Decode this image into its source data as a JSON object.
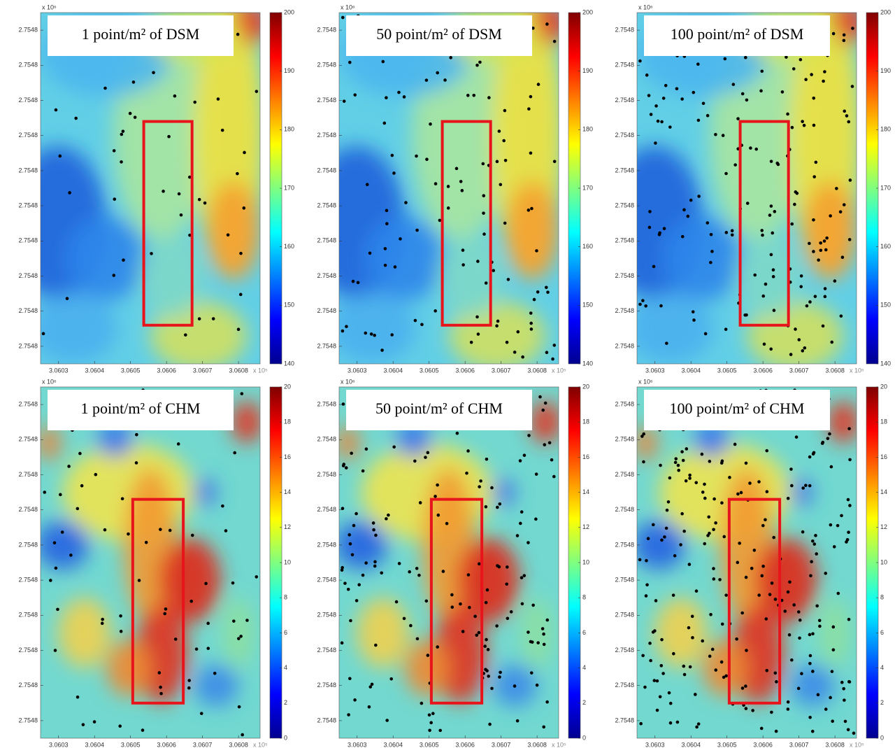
{
  "chart_data": [
    {
      "type": "heatmap",
      "kind": "dsm",
      "title": "1 point/m² of DSM",
      "y_exponent": "x 10⁶",
      "x_exponent": "x 10⁵",
      "xlim": [
        3.06025,
        3.06086
      ],
      "xticks": [
        3.0603,
        3.0604,
        3.0605,
        3.0606,
        3.0607,
        3.0608
      ],
      "ylim": [
        2.75475,
        2.75485
      ],
      "yticks": [
        {
          "value": 2.754755,
          "label": "2.7548"
        },
        {
          "value": 2.754765,
          "label": "2.7548"
        },
        {
          "value": 2.754775,
          "label": "2.7548"
        },
        {
          "value": 2.754785,
          "label": "2.7548"
        },
        {
          "value": 2.754795,
          "label": "2.7548"
        },
        {
          "value": 2.754805,
          "label": "2.7548"
        },
        {
          "value": 2.754815,
          "label": "2.7548"
        },
        {
          "value": 2.754825,
          "label": "2.7548"
        },
        {
          "value": 2.754835,
          "label": "2.7548"
        },
        {
          "value": 2.754845,
          "label": "2.7548"
        }
      ],
      "zlim": [
        140,
        200
      ],
      "zticks": [
        140,
        150,
        160,
        170,
        180,
        190,
        200
      ],
      "dot_density": 45
    },
    {
      "type": "heatmap",
      "kind": "dsm",
      "title": "50 point/m² of DSM",
      "y_exponent": "x 10⁶",
      "x_exponent": "x 10⁵",
      "xlim": [
        3.06025,
        3.06086
      ],
      "xticks": [
        3.0603,
        3.0604,
        3.0605,
        3.0606,
        3.0607,
        3.0608
      ],
      "ylim": [
        2.75475,
        2.75485
      ],
      "yticks": [
        {
          "value": 2.754755,
          "label": "2.7548"
        },
        {
          "value": 2.754765,
          "label": "2.7548"
        },
        {
          "value": 2.754775,
          "label": "2.7548"
        },
        {
          "value": 2.754785,
          "label": "2.7548"
        },
        {
          "value": 2.754795,
          "label": "2.7548"
        },
        {
          "value": 2.754805,
          "label": "2.7548"
        },
        {
          "value": 2.754815,
          "label": "2.7548"
        },
        {
          "value": 2.754825,
          "label": "2.7548"
        },
        {
          "value": 2.754835,
          "label": "2.7548"
        },
        {
          "value": 2.754845,
          "label": "2.7548"
        }
      ],
      "zlim": [
        140,
        200
      ],
      "zticks": [
        140,
        150,
        160,
        170,
        180,
        190,
        200
      ],
      "dot_density": 110
    },
    {
      "type": "heatmap",
      "kind": "dsm",
      "title": "100 point/m² of DSM",
      "y_exponent": "x 10⁶",
      "x_exponent": "x 10⁵",
      "xlim": [
        3.06025,
        3.06086
      ],
      "xticks": [
        3.0603,
        3.0604,
        3.0605,
        3.0606,
        3.0607,
        3.0608
      ],
      "ylim": [
        2.75475,
        2.75485
      ],
      "yticks": [
        {
          "value": 2.754755,
          "label": "2.7548"
        },
        {
          "value": 2.754765,
          "label": "2.7548"
        },
        {
          "value": 2.754775,
          "label": "2.7548"
        },
        {
          "value": 2.754785,
          "label": "2.7548"
        },
        {
          "value": 2.754795,
          "label": "2.7548"
        },
        {
          "value": 2.754805,
          "label": "2.7548"
        },
        {
          "value": 2.754815,
          "label": "2.7548"
        },
        {
          "value": 2.754825,
          "label": "2.7548"
        },
        {
          "value": 2.754835,
          "label": "2.7548"
        },
        {
          "value": 2.754845,
          "label": "2.7548"
        }
      ],
      "zlim": [
        140,
        200
      ],
      "zticks": [
        140,
        150,
        160,
        170,
        180,
        190,
        200
      ],
      "dot_density": 170
    },
    {
      "type": "heatmap",
      "kind": "chm",
      "title": "1 point/m² of CHM",
      "y_exponent": "x 10⁶",
      "x_exponent": "x 10⁵",
      "xlim": [
        3.06025,
        3.06086
      ],
      "xticks": [
        3.0603,
        3.0604,
        3.0605,
        3.0606,
        3.0607,
        3.0608
      ],
      "ylim": [
        2.75475,
        2.75485
      ],
      "yticks": [
        {
          "value": 2.754755,
          "label": "2.7548"
        },
        {
          "value": 2.754765,
          "label": "2.7548"
        },
        {
          "value": 2.754775,
          "label": "2.7548"
        },
        {
          "value": 2.754785,
          "label": "2.7548"
        },
        {
          "value": 2.754795,
          "label": "2.7548"
        },
        {
          "value": 2.754805,
          "label": "2.7548"
        },
        {
          "value": 2.754815,
          "label": "2.7548"
        },
        {
          "value": 2.754825,
          "label": "2.7548"
        },
        {
          "value": 2.754835,
          "label": "2.7548"
        },
        {
          "value": 2.754845,
          "label": "2.7548"
        }
      ],
      "zlim": [
        0,
        20
      ],
      "zticks": [
        0,
        2,
        4,
        6,
        8,
        10,
        12,
        14,
        16,
        18,
        20
      ],
      "dot_density": 70
    },
    {
      "type": "heatmap",
      "kind": "chm",
      "title": "50 point/m² of CHM",
      "y_exponent": "x 10⁶",
      "x_exponent": "x 10⁵",
      "xlim": [
        3.06025,
        3.06086
      ],
      "xticks": [
        3.0603,
        3.0604,
        3.0605,
        3.0606,
        3.0607,
        3.0608
      ],
      "ylim": [
        2.75475,
        2.75485
      ],
      "yticks": [
        {
          "value": 2.754755,
          "label": "2.7548"
        },
        {
          "value": 2.754765,
          "label": "2.7548"
        },
        {
          "value": 2.754775,
          "label": "2.7548"
        },
        {
          "value": 2.754785,
          "label": "2.7548"
        },
        {
          "value": 2.754795,
          "label": "2.7548"
        },
        {
          "value": 2.754805,
          "label": "2.7548"
        },
        {
          "value": 2.754815,
          "label": "2.7548"
        },
        {
          "value": 2.754825,
          "label": "2.7548"
        },
        {
          "value": 2.754835,
          "label": "2.7548"
        },
        {
          "value": 2.754845,
          "label": "2.7548"
        }
      ],
      "zlim": [
        0,
        20
      ],
      "zticks": [
        0,
        2,
        4,
        6,
        8,
        10,
        12,
        14,
        16,
        18,
        20
      ],
      "dot_density": 160
    },
    {
      "type": "heatmap",
      "kind": "chm",
      "title": "100 point/m² of CHM",
      "y_exponent": "x 10⁶",
      "x_exponent": "x 10⁵",
      "xlim": [
        3.06025,
        3.06086
      ],
      "xticks": [
        3.0603,
        3.0604,
        3.0605,
        3.0606,
        3.0607,
        3.0608
      ],
      "ylim": [
        2.75475,
        2.75485
      ],
      "yticks": [
        {
          "value": 2.754755,
          "label": "2.7548"
        },
        {
          "value": 2.754765,
          "label": "2.7548"
        },
        {
          "value": 2.754775,
          "label": "2.7548"
        },
        {
          "value": 2.754785,
          "label": "2.7548"
        },
        {
          "value": 2.754795,
          "label": "2.7548"
        },
        {
          "value": 2.754805,
          "label": "2.7548"
        },
        {
          "value": 2.754815,
          "label": "2.7548"
        },
        {
          "value": 2.754825,
          "label": "2.7548"
        },
        {
          "value": 2.754835,
          "label": "2.7548"
        },
        {
          "value": 2.754845,
          "label": "2.7548"
        }
      ],
      "zlim": [
        0,
        20
      ],
      "zticks": [
        0,
        2,
        4,
        6,
        8,
        10,
        12,
        14,
        16,
        18,
        20
      ],
      "dot_density": 230
    }
  ]
}
